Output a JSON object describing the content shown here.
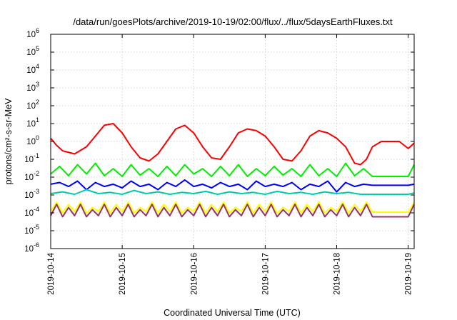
{
  "chart_data": {
    "type": "line",
    "title": "/data/run/goesPlots/archive/2019-10-19/02:00/flux/../flux/5daysEarthFluxes.txt",
    "xlabel": "Coordinated Universal Time (UTC)",
    "ylabel": "protons/cm²-s-sr-MeV",
    "yscale": "log",
    "ylim": [
      1e-06,
      1000000.0
    ],
    "xlim": [
      "2019-10-14 00:00",
      "2019-10-19 02:00"
    ],
    "grid": true,
    "x_ticks": [
      "2019-10-14",
      "2019-10-15",
      "2019-10-16",
      "2019-10-17",
      "2019-10-18",
      "2019-10-19"
    ],
    "y_ticks": [
      {
        "base": "10",
        "exp": "-6"
      },
      {
        "base": "10",
        "exp": "-5"
      },
      {
        "base": "10",
        "exp": "-4"
      },
      {
        "base": "10",
        "exp": "-3"
      },
      {
        "base": "10",
        "exp": "-2"
      },
      {
        "base": "10",
        "exp": "-1"
      },
      {
        "base": "10",
        "exp": "0"
      },
      {
        "base": "10",
        "exp": "1"
      },
      {
        "base": "10",
        "exp": "2"
      },
      {
        "base": "10",
        "exp": "3"
      },
      {
        "base": "10",
        "exp": "4"
      },
      {
        "base": "10",
        "exp": "5"
      },
      {
        "base": "10",
        "exp": "6"
      }
    ],
    "series": [
      {
        "color": "#ff0000",
        "x_hours": [
          0,
          2,
          4,
          8,
          12,
          15,
          18,
          21,
          24,
          27,
          30,
          33,
          36,
          39,
          42,
          45,
          48,
          51,
          54,
          57,
          60,
          63,
          66,
          69,
          72,
          75,
          78,
          81,
          84,
          87,
          90,
          93,
          96,
          99,
          102,
          104,
          106,
          108,
          111,
          114,
          117,
          120,
          122
        ],
        "y": [
          1.5,
          0.6,
          0.3,
          0.2,
          0.5,
          2,
          8,
          10,
          3,
          0.5,
          0.12,
          0.08,
          0.2,
          1,
          5,
          8,
          3,
          0.5,
          0.12,
          0.1,
          0.5,
          3,
          5,
          4,
          2,
          0.5,
          0.1,
          0.08,
          0.3,
          2,
          4,
          3,
          1.5,
          0.5,
          0.06,
          0.05,
          0.1,
          0.5,
          1,
          1,
          1,
          0.4,
          0.8
        ]
      },
      {
        "color": "#00ee00",
        "x_hours": [
          0,
          3,
          6,
          9,
          12,
          15,
          18,
          21,
          24,
          27,
          30,
          33,
          36,
          39,
          42,
          45,
          48,
          51,
          54,
          57,
          60,
          63,
          66,
          69,
          72,
          75,
          78,
          81,
          84,
          87,
          90,
          93,
          96,
          99,
          102,
          105,
          108,
          111,
          114,
          117,
          120,
          122
        ],
        "y": [
          0.015,
          0.04,
          0.012,
          0.05,
          0.015,
          0.06,
          0.012,
          0.03,
          0.011,
          0.05,
          0.013,
          0.03,
          0.011,
          0.04,
          0.012,
          0.05,
          0.015,
          0.03,
          0.011,
          0.04,
          0.012,
          0.05,
          0.011,
          0.03,
          0.012,
          0.04,
          0.013,
          0.03,
          0.011,
          0.05,
          0.012,
          0.03,
          0.011,
          0.06,
          0.012,
          0.03,
          0.011,
          0.011,
          0.011,
          0.011,
          0.011,
          0.05
        ]
      },
      {
        "color": "#0000ff",
        "x_hours": [
          0,
          3,
          6,
          9,
          12,
          15,
          18,
          21,
          24,
          27,
          30,
          33,
          36,
          39,
          42,
          45,
          48,
          51,
          54,
          57,
          60,
          63,
          66,
          69,
          72,
          75,
          78,
          81,
          84,
          87,
          90,
          93,
          96,
          99,
          102,
          105,
          108,
          111,
          114,
          117,
          120,
          122
        ],
        "y": [
          0.004,
          0.005,
          0.003,
          0.006,
          0.002,
          0.005,
          0.003,
          0.004,
          0.0025,
          0.006,
          0.003,
          0.004,
          0.002,
          0.005,
          0.003,
          0.007,
          0.003,
          0.004,
          0.0025,
          0.005,
          0.003,
          0.004,
          0.002,
          0.006,
          0.003,
          0.004,
          0.003,
          0.005,
          0.002,
          0.004,
          0.003,
          0.006,
          0.0015,
          0.005,
          0.003,
          0.004,
          0.0035,
          0.0035,
          0.0035,
          0.0035,
          0.0035,
          0.004
        ]
      },
      {
        "color": "#00ccaa",
        "x_hours": [
          0,
          4,
          8,
          12,
          16,
          20,
          24,
          28,
          32,
          36,
          40,
          44,
          48,
          52,
          56,
          60,
          64,
          68,
          72,
          76,
          80,
          84,
          88,
          92,
          96,
          100,
          104,
          108,
          112,
          116,
          120,
          122
        ],
        "y": [
          0.0012,
          0.0015,
          0.0011,
          0.002,
          0.0012,
          0.0014,
          0.0011,
          0.0018,
          0.0012,
          0.0015,
          0.0011,
          0.0014,
          0.0012,
          0.0016,
          0.0011,
          0.0015,
          0.0012,
          0.0014,
          0.0011,
          0.0016,
          0.0012,
          0.0014,
          0.0011,
          0.0015,
          0.0012,
          0.0014,
          0.0011,
          0.0011,
          0.0011,
          0.0011,
          0.0011,
          0.0013
        ]
      },
      {
        "color": "#ffff00",
        "x_hours": [
          0,
          2,
          4,
          6,
          8,
          10,
          12,
          14,
          16,
          18,
          20,
          22,
          24,
          26,
          28,
          30,
          32,
          34,
          36,
          38,
          40,
          42,
          44,
          46,
          48,
          50,
          52,
          54,
          56,
          58,
          60,
          62,
          64,
          66,
          68,
          70,
          72,
          74,
          76,
          78,
          80,
          82,
          84,
          86,
          88,
          90,
          92,
          94,
          96,
          98,
          100,
          102,
          104,
          106,
          108,
          112,
          116,
          120,
          122
        ],
        "y": [
          0.00012,
          0.0004,
          0.0001,
          0.0003,
          0.00012,
          0.0004,
          0.0001,
          0.0002,
          0.00012,
          0.0004,
          0.0001,
          0.0003,
          0.00012,
          0.0004,
          0.0001,
          0.0002,
          0.00012,
          0.0004,
          0.0001,
          0.0003,
          0.00012,
          0.0004,
          0.0001,
          0.0002,
          0.00012,
          0.0004,
          0.0001,
          0.0003,
          0.00012,
          0.0004,
          0.0001,
          0.0002,
          0.00012,
          0.0004,
          0.0001,
          0.0003,
          0.00012,
          0.0004,
          0.0001,
          0.0002,
          0.00012,
          0.0004,
          0.0001,
          0.0003,
          0.00012,
          0.0004,
          0.0001,
          0.0002,
          0.00012,
          0.0004,
          0.0001,
          0.0003,
          0.00012,
          0.0004,
          0.00011,
          0.00011,
          0.00011,
          0.00011,
          0.0004
        ]
      },
      {
        "color": "#993366",
        "x_hours": [
          0,
          2,
          4,
          6,
          8,
          10,
          12,
          14,
          16,
          18,
          20,
          22,
          24,
          26,
          28,
          30,
          32,
          34,
          36,
          38,
          40,
          42,
          44,
          46,
          48,
          50,
          52,
          54,
          56,
          58,
          60,
          62,
          64,
          66,
          68,
          70,
          72,
          74,
          76,
          78,
          80,
          82,
          84,
          86,
          88,
          90,
          92,
          94,
          96,
          98,
          100,
          102,
          104,
          106,
          108,
          112,
          116,
          120,
          122
        ],
        "y": [
          7e-05,
          0.0003,
          6e-05,
          0.0002,
          7e-05,
          0.0003,
          6e-05,
          0.00015,
          7e-05,
          0.0003,
          6e-05,
          0.0002,
          7e-05,
          0.0003,
          6e-05,
          0.00015,
          7e-05,
          0.0003,
          6e-05,
          0.0002,
          7e-05,
          0.0003,
          6e-05,
          0.00015,
          7e-05,
          0.0003,
          6e-05,
          0.0002,
          7e-05,
          0.0003,
          6e-05,
          0.00015,
          7e-05,
          0.0003,
          6e-05,
          0.0002,
          7e-05,
          0.0003,
          6e-05,
          0.00015,
          7e-05,
          0.0003,
          6e-05,
          0.0002,
          7e-05,
          0.0003,
          6e-05,
          0.00015,
          7e-05,
          0.0003,
          6e-05,
          0.0002,
          7e-05,
          0.0003,
          6e-05,
          6e-05,
          6e-05,
          6e-05,
          0.0003
        ]
      }
    ]
  }
}
